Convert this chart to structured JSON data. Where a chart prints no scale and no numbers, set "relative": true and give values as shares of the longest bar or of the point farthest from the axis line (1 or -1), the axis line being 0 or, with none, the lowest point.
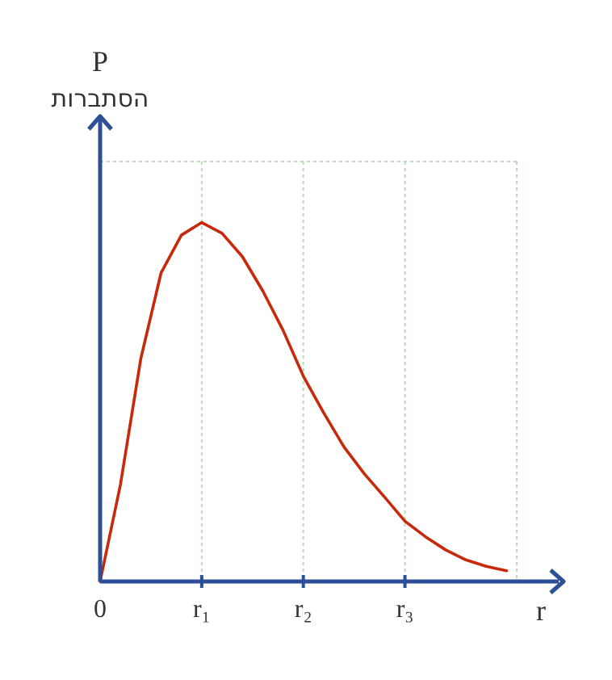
{
  "chart_data": {
    "type": "line",
    "ylabel": "P",
    "xlabel": "r",
    "relative": true,
    "line_style": "solid",
    "grid": "x",
    "annotations": [
      "הסתברות"
    ],
    "categories": [
      "0",
      null,
      null,
      null,
      null,
      "r₁",
      null,
      null,
      null,
      null,
      "r₂",
      null,
      null,
      null,
      null,
      "r₃",
      null,
      null,
      null,
      null,
      null
    ],
    "series": [
      {
        "color": "#c8290a",
        "values": [
          0,
          0.27,
          0.62,
          0.86,
          0.965,
          1,
          0.97,
          0.905,
          0.81,
          0.7,
          0.572,
          0.47,
          0.375,
          0.3,
          0.235,
          0.168,
          0.125,
          0.088,
          0.06,
          0.042,
          0.03
        ]
      }
    ]
  }
}
